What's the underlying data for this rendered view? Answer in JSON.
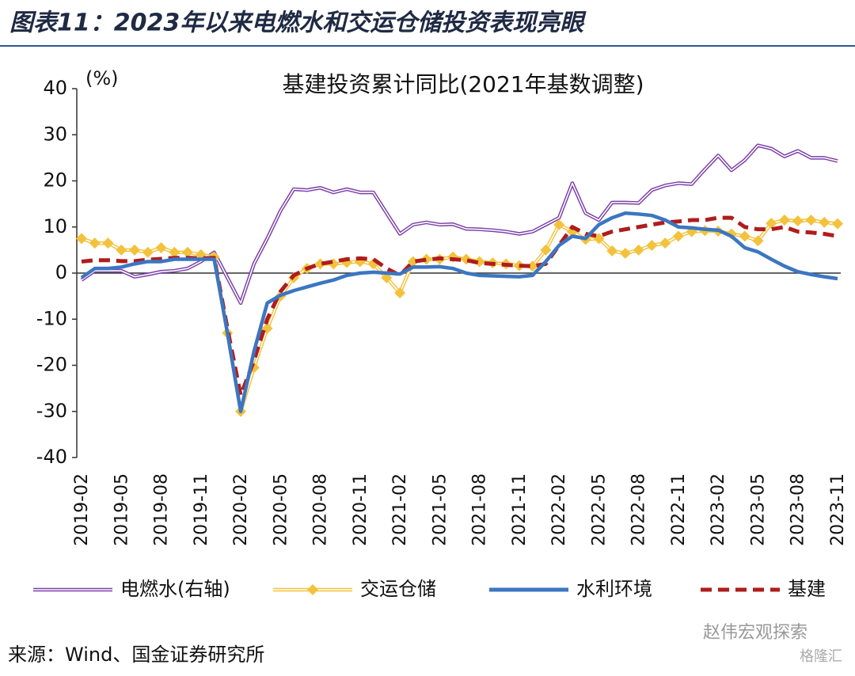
{
  "header": {
    "title": "图表11：2023年以来电燃水和交运仓储投资表现亮眼"
  },
  "chart_data": {
    "type": "line",
    "title": "基建投资累计同比(2021年基数调整)",
    "y_label": "(%)",
    "categories": [
      "2019-02",
      null,
      null,
      "2019-05",
      null,
      null,
      "2019-08",
      null,
      null,
      "2019-11",
      null,
      null,
      "2020-02",
      null,
      null,
      "2020-05",
      null,
      null,
      "2020-08",
      null,
      null,
      "2020-11",
      null,
      null,
      "2021-02",
      null,
      null,
      "2021-05",
      null,
      null,
      "2021-08",
      null,
      null,
      "2021-11",
      null,
      null,
      "2022-02",
      null,
      null,
      "2022-05",
      null,
      null,
      "2022-08",
      null,
      null,
      "2022-11",
      null,
      null,
      "2023-02",
      null,
      null,
      "2023-05",
      null,
      null,
      "2023-08",
      null,
      null,
      "2023-11"
    ],
    "series": [
      {
        "name": "电燃水(右轴)",
        "color": "#7b3fa8",
        "style": "double",
        "values": [
          -1.5,
          0.5,
          0.5,
          0.5,
          -0.8,
          -0.3,
          0.3,
          0.5,
          1,
          2.5,
          4.5,
          -1,
          -6.5,
          2,
          7.5,
          13.5,
          18.2,
          18,
          18.5,
          17.5,
          18.2,
          17.5,
          17.5,
          13,
          8.5,
          10.5,
          11,
          10.5,
          10.6,
          9.6,
          9.5,
          9.3,
          9,
          8.5,
          9,
          10.5,
          12,
          19.5,
          13,
          11.5,
          15.3,
          15.3,
          15.2,
          18,
          19,
          19.5,
          19.3,
          22.5,
          25.5,
          22.3,
          24.5,
          27.7,
          27,
          25.3,
          26.5,
          25,
          25,
          24.3
        ]
      },
      {
        "name": "交运仓储",
        "color": "#f3c23c",
        "style": "double-diamond",
        "values": [
          7.5,
          6.5,
          6.5,
          5,
          5,
          4.5,
          5.5,
          4.5,
          4.5,
          4,
          3.5,
          -13,
          -30,
          -20.5,
          -12,
          -5,
          -1,
          1,
          2,
          2,
          2.3,
          2.5,
          2,
          -1,
          -4.3,
          2.5,
          3,
          3,
          3.5,
          3,
          2.5,
          2.2,
          2,
          1.6,
          1.5,
          5,
          10.5,
          9,
          7.3,
          7.5,
          4.8,
          4.3,
          5,
          6,
          6.5,
          8,
          9,
          9.2,
          9.1,
          8.5,
          8,
          7,
          10.8,
          11.5,
          11.3,
          11.5,
          11,
          10.7
        ]
      },
      {
        "name": "水利环境",
        "color": "#3b76c2",
        "style": "solid",
        "values": [
          -1,
          1,
          1,
          1.3,
          2,
          2.5,
          2.5,
          3,
          3,
          3,
          3,
          -13,
          -30,
          -17,
          -6.5,
          -4.8,
          -3.8,
          -3,
          -2.2,
          -1.5,
          -0.5,
          0,
          0.2,
          0,
          -0.2,
          1.3,
          1.3,
          1.4,
          1,
          0,
          -0.5,
          -0.6,
          -0.7,
          -0.8,
          -0.5,
          2.5,
          6,
          8,
          7.5,
          10.5,
          12,
          13,
          12.8,
          12.5,
          11.5,
          10,
          9.8,
          9.5,
          9.3,
          8,
          5.5,
          4.6,
          3,
          1.5,
          0.3,
          -0.3,
          -0.8,
          -1.2
        ]
      },
      {
        "name": "基建",
        "color": "#b01c1c",
        "style": "dashed",
        "values": [
          2.5,
          2.8,
          2.8,
          2.6,
          2.6,
          2.9,
          3.1,
          3.3,
          3.3,
          3.2,
          3.3,
          -12,
          -26.5,
          -19,
          -10,
          -4,
          -0.5,
          1,
          2,
          2.5,
          3,
          3.2,
          3,
          1,
          -0.5,
          2.5,
          2.9,
          3.2,
          3,
          2.8,
          2.2,
          2,
          1.8,
          1.6,
          1.5,
          2,
          6,
          10,
          8.5,
          8,
          9,
          9.5,
          10,
          10.5,
          11,
          11.2,
          11.5,
          11.5,
          12,
          12,
          10,
          9.5,
          9.5,
          10,
          9,
          8.8,
          8.5,
          8
        ]
      }
    ],
    "ylim": [
      -40,
      40
    ],
    "yticks": [
      -40,
      -30,
      -20,
      -10,
      0,
      10,
      20,
      30,
      40
    ]
  },
  "footer": {
    "source": "来源：Wind、国金证券研究所",
    "watermark": "赵伟宏观探索",
    "watermark2": "格隆汇"
  }
}
